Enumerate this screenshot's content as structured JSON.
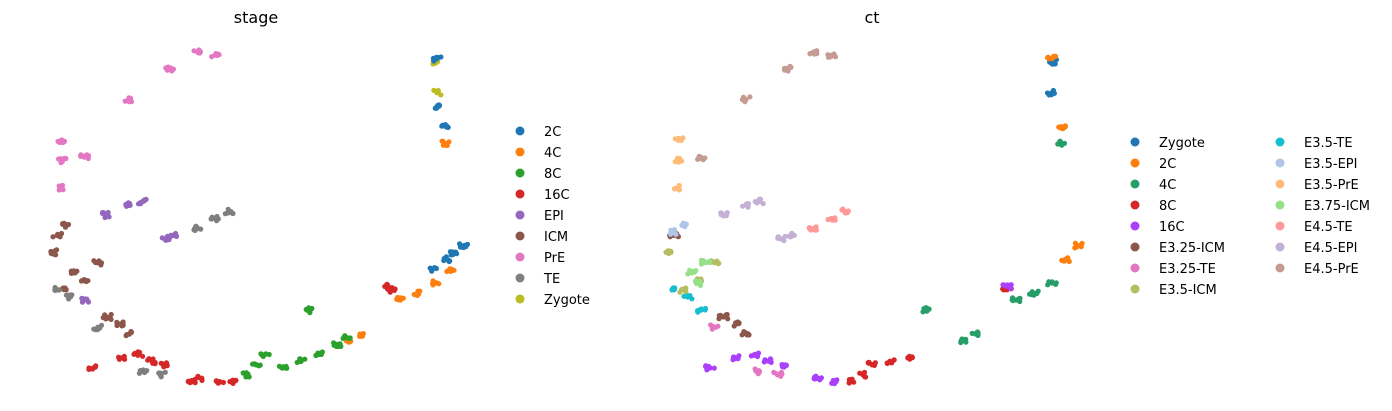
{
  "chart_data": [
    {
      "type": "scatter",
      "title": "stage",
      "xlabel": "",
      "ylabel": "",
      "axes": "hidden",
      "grid": false,
      "legend": "right",
      "legend_entries": [
        {
          "name": "2C",
          "color": "#1f77b4"
        },
        {
          "name": "4C",
          "color": "#ff7f0e"
        },
        {
          "name": "8C",
          "color": "#2ca02c"
        },
        {
          "name": "16C",
          "color": "#d62728"
        },
        {
          "name": "EPI",
          "color": "#9467bd"
        },
        {
          "name": "ICM",
          "color": "#8c564b"
        },
        {
          "name": "PrE",
          "color": "#e377c2"
        },
        {
          "name": "TE",
          "color": "#7f7f7f"
        },
        {
          "name": "Zygote",
          "color": "#bcbd22"
        }
      ],
      "groups": [
        {
          "name": "Zygote",
          "points": [
            [
              0.9,
              0.95
            ],
            [
              0.9,
              0.86
            ]
          ]
        },
        {
          "name": "2C",
          "points": [
            [
              0.9,
              0.96
            ],
            [
              0.905,
              0.82
            ],
            [
              0.92,
              0.76
            ],
            [
              0.89,
              0.34
            ],
            [
              0.92,
              0.37
            ],
            [
              0.94,
              0.39
            ],
            [
              0.96,
              0.41
            ]
          ]
        },
        {
          "name": "4C",
          "points": [
            [
              0.92,
              0.71
            ],
            [
              0.82,
              0.25
            ],
            [
              0.86,
              0.27
            ],
            [
              0.9,
              0.3
            ],
            [
              0.93,
              0.34
            ],
            [
              0.73,
              0.15
            ],
            [
              0.7,
              0.13
            ]
          ]
        },
        {
          "name": "8C",
          "points": [
            [
              0.62,
              0.22
            ],
            [
              0.52,
              0.09
            ],
            [
              0.56,
              0.05
            ],
            [
              0.6,
              0.07
            ],
            [
              0.64,
              0.09
            ],
            [
              0.68,
              0.12
            ],
            [
              0.7,
              0.14
            ],
            [
              0.5,
              0.06
            ],
            [
              0.48,
              0.03
            ]
          ]
        },
        {
          "name": "16C",
          "points": [
            [
              0.8,
              0.28
            ],
            [
              0.79,
              0.29
            ],
            [
              0.24,
              0.09
            ],
            [
              0.27,
              0.07
            ],
            [
              0.3,
              0.06
            ],
            [
              0.38,
              0.02
            ],
            [
              0.42,
              0.01
            ],
            [
              0.45,
              0.01
            ],
            [
              0.36,
              0.01
            ],
            [
              0.14,
              0.05
            ],
            [
              0.2,
              0.08
            ]
          ]
        },
        {
          "name": "EPI",
          "points": [
            [
              0.22,
              0.53
            ],
            [
              0.25,
              0.54
            ],
            [
              0.17,
              0.5
            ],
            [
              0.32,
              0.44
            ],
            [
              0.3,
              0.43
            ],
            [
              0.12,
              0.25
            ]
          ]
        },
        {
          "name": "ICM",
          "points": [
            [
              0.05,
              0.39
            ],
            [
              0.06,
              0.44
            ],
            [
              0.08,
              0.28
            ],
            [
              0.1,
              0.33
            ],
            [
              0.15,
              0.36
            ],
            [
              0.12,
              0.31
            ],
            [
              0.17,
              0.2
            ],
            [
              0.2,
              0.18
            ],
            [
              0.22,
              0.15
            ],
            [
              0.08,
              0.47
            ]
          ]
        },
        {
          "name": "PrE",
          "points": [
            [
              0.07,
              0.58
            ],
            [
              0.07,
              0.66
            ],
            [
              0.07,
              0.72
            ],
            [
              0.31,
              0.93
            ],
            [
              0.37,
              0.98
            ],
            [
              0.41,
              0.97
            ],
            [
              0.22,
              0.84
            ],
            [
              0.12,
              0.67
            ]
          ]
        },
        {
          "name": "TE",
          "points": [
            [
              0.06,
              0.28
            ],
            [
              0.09,
              0.26
            ],
            [
              0.15,
              0.17
            ],
            [
              0.25,
              0.04
            ],
            [
              0.29,
              0.03
            ],
            [
              0.41,
              0.49
            ],
            [
              0.44,
              0.51
            ],
            [
              0.37,
              0.46
            ]
          ]
        }
      ]
    },
    {
      "type": "scatter",
      "title": "ct",
      "xlabel": "",
      "ylabel": "",
      "axes": "hidden",
      "grid": false,
      "legend": "right",
      "legend_entries": [
        {
          "name": "Zygote",
          "color": "#1f77b4"
        },
        {
          "name": "2C",
          "color": "#ff7f0e"
        },
        {
          "name": "4C",
          "color": "#279e68"
        },
        {
          "name": "8C",
          "color": "#d62728"
        },
        {
          "name": "16C",
          "color": "#aa40fc"
        },
        {
          "name": "E3.25-ICM",
          "color": "#8c564b"
        },
        {
          "name": "E3.25-TE",
          "color": "#e377c2"
        },
        {
          "name": "E3.5-ICM",
          "color": "#b5bd61"
        },
        {
          "name": "E3.5-TE",
          "color": "#17becf"
        },
        {
          "name": "E3.5-EPI",
          "color": "#aec7e8"
        },
        {
          "name": "E3.5-PrE",
          "color": "#ffbb78"
        },
        {
          "name": "E3.75-ICM",
          "color": "#98df8a"
        },
        {
          "name": "E4.5-TE",
          "color": "#ff9896"
        },
        {
          "name": "E4.5-EPI",
          "color": "#c5b0d5"
        },
        {
          "name": "E4.5-PrE",
          "color": "#c49c94"
        }
      ],
      "groups": [
        {
          "name": "Zygote",
          "points": [
            [
              0.9,
              0.95
            ],
            [
              0.9,
              0.86
            ]
          ]
        },
        {
          "name": "2C",
          "points": [
            [
              0.9,
              0.96
            ],
            [
              0.92,
              0.76
            ],
            [
              0.96,
              0.41
            ],
            [
              0.93,
              0.37
            ]
          ]
        },
        {
          "name": "4C",
          "points": [
            [
              0.92,
              0.71
            ],
            [
              0.82,
              0.25
            ],
            [
              0.86,
              0.27
            ],
            [
              0.9,
              0.3
            ],
            [
              0.73,
              0.15
            ],
            [
              0.7,
              0.13
            ],
            [
              0.62,
              0.22
            ]
          ]
        },
        {
          "name": "8C",
          "points": [
            [
              0.8,
              0.28
            ],
            [
              0.54,
              0.07
            ],
            [
              0.58,
              0.08
            ],
            [
              0.5,
              0.06
            ],
            [
              0.48,
              0.03
            ],
            [
              0.45,
              0.01
            ]
          ]
        },
        {
          "name": "16C",
          "points": [
            [
              0.24,
              0.09
            ],
            [
              0.27,
              0.07
            ],
            [
              0.3,
              0.06
            ],
            [
              0.38,
              0.02
            ],
            [
              0.42,
              0.01
            ],
            [
              0.14,
              0.05
            ],
            [
              0.2,
              0.08
            ],
            [
              0.8,
              0.29
            ]
          ]
        },
        {
          "name": "E3.25-ICM",
          "points": [
            [
              0.06,
              0.44
            ],
            [
              0.17,
              0.2
            ],
            [
              0.2,
              0.18
            ],
            [
              0.22,
              0.15
            ]
          ]
        },
        {
          "name": "E3.25-TE",
          "points": [
            [
              0.25,
              0.04
            ],
            [
              0.29,
              0.03
            ],
            [
              0.15,
              0.17
            ]
          ]
        },
        {
          "name": "E3.5-ICM",
          "points": [
            [
              0.05,
              0.39
            ],
            [
              0.08,
              0.28
            ],
            [
              0.12,
              0.31
            ],
            [
              0.15,
              0.36
            ]
          ]
        },
        {
          "name": "E3.5-TE",
          "points": [
            [
              0.06,
              0.28
            ],
            [
              0.09,
              0.26
            ],
            [
              0.12,
              0.22
            ]
          ]
        },
        {
          "name": "E3.5-EPI",
          "points": [
            [
              0.08,
              0.47
            ],
            [
              0.06,
              0.45
            ]
          ]
        },
        {
          "name": "E3.5-PrE",
          "points": [
            [
              0.07,
              0.58
            ],
            [
              0.07,
              0.66
            ],
            [
              0.07,
              0.72
            ]
          ]
        },
        {
          "name": "E3.75-ICM",
          "points": [
            [
              0.1,
              0.33
            ],
            [
              0.13,
              0.36
            ],
            [
              0.11,
              0.3
            ]
          ]
        },
        {
          "name": "E4.5-TE",
          "points": [
            [
              0.41,
              0.49
            ],
            [
              0.44,
              0.51
            ],
            [
              0.37,
              0.46
            ]
          ]
        },
        {
          "name": "E4.5-EPI",
          "points": [
            [
              0.22,
              0.53
            ],
            [
              0.25,
              0.54
            ],
            [
              0.17,
              0.5
            ],
            [
              0.32,
              0.44
            ],
            [
              0.3,
              0.43
            ]
          ]
        },
        {
          "name": "E4.5-PrE",
          "points": [
            [
              0.31,
              0.93
            ],
            [
              0.37,
              0.98
            ],
            [
              0.41,
              0.97
            ],
            [
              0.22,
              0.84
            ],
            [
              0.12,
              0.67
            ]
          ]
        }
      ]
    }
  ]
}
